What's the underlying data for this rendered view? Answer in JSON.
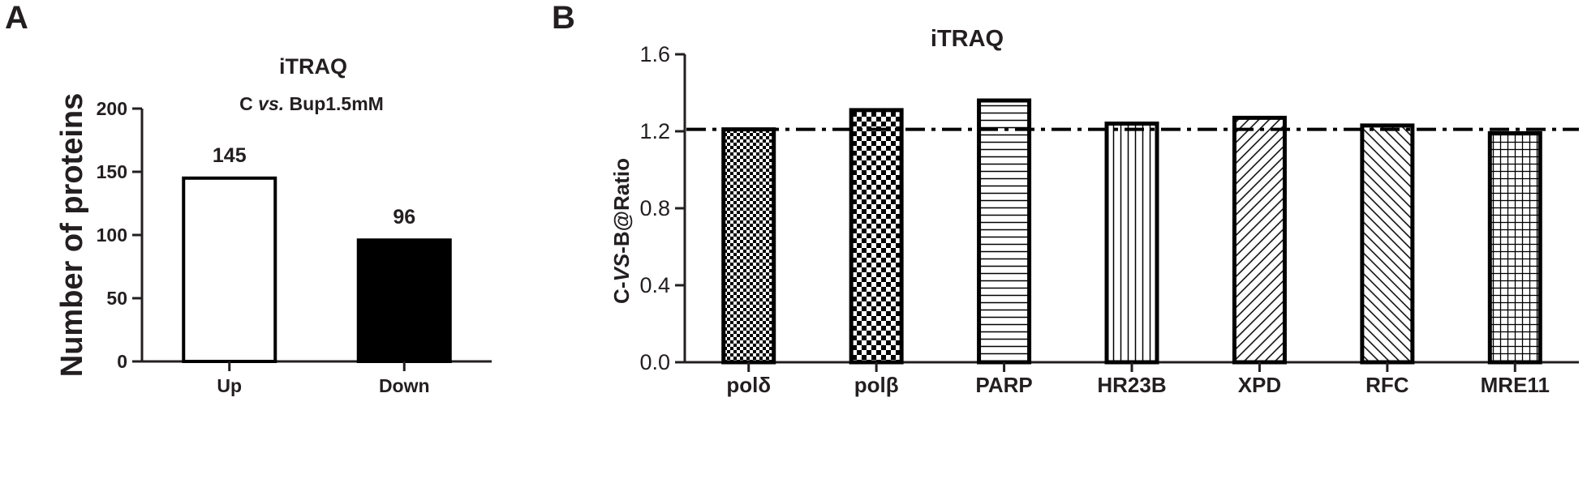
{
  "chart_data": [
    {
      "panel_label": "A",
      "type": "bar",
      "title": "iTRAQ",
      "subtitle": {
        "prefix": "C ",
        "italic": "vs.",
        "suffix": " Bup1.5mM"
      },
      "xlabel": "",
      "ylabel": "Number of proteins",
      "ylim": [
        0,
        200
      ],
      "yticks": [
        0,
        50,
        100,
        150,
        200
      ],
      "categories": [
        "Up",
        "Down"
      ],
      "values": [
        145,
        96
      ],
      "data_labels": [
        "145",
        "96"
      ],
      "bar_fills": [
        "#ffffff",
        "#000000"
      ],
      "grid": false,
      "legend": "none"
    },
    {
      "panel_label": "B",
      "type": "bar",
      "title": "iTRAQ",
      "xlabel": "",
      "ylabel": {
        "prefix": "C-",
        "italic": "VS",
        "suffix": "-B@Ratio"
      },
      "ylim": [
        0,
        1.6
      ],
      "yticks": [
        "0.0",
        "0.4",
        "0.8",
        "1.2",
        "1.6"
      ],
      "categories": [
        "polδ",
        "polβ",
        "PARP",
        "HR23B",
        "XPD",
        "RFC",
        "MRE11"
      ],
      "values": [
        1.21,
        1.31,
        1.36,
        1.24,
        1.27,
        1.23,
        1.19
      ],
      "bar_patterns": [
        "fine-checker",
        "checker",
        "horizontal-lines",
        "vertical-lines",
        "diagonal-right",
        "diagonal-left",
        "grid"
      ],
      "reference_line": {
        "value": 1.21,
        "style": "dash-dot"
      },
      "grid": false,
      "legend": "none"
    }
  ],
  "colors": {
    "ink": "#231f20",
    "bar_stroke": "#000000",
    "background": "#ffffff"
  }
}
